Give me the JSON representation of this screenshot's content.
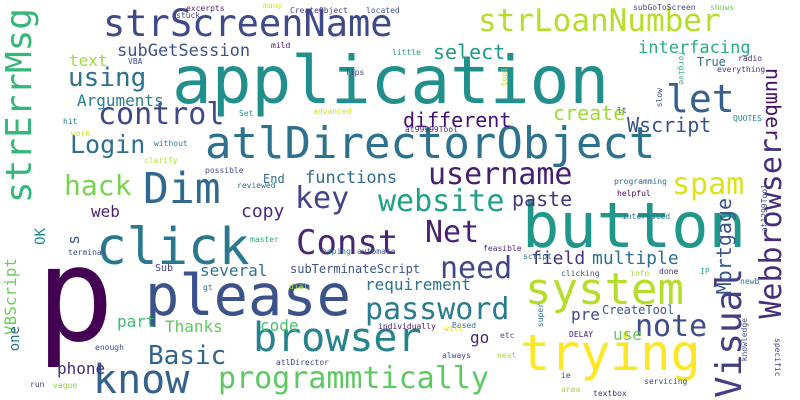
{
  "words": [
    {
      "text": "p",
      "color": "#440154"
    },
    {
      "text": "application",
      "color": "#21908c"
    },
    {
      "text": "button",
      "color": "#1f988b"
    },
    {
      "text": "please",
      "color": "#3b528b"
    },
    {
      "text": "atlDirectorObject",
      "color": "#2c728e"
    },
    {
      "text": "trying",
      "color": "#fde725"
    },
    {
      "text": "click",
      "color": "#2a788e"
    },
    {
      "text": "strScreenName",
      "color": "#3e4a89"
    },
    {
      "text": "strErrMsg",
      "color": "#35b779"
    },
    {
      "text": "system",
      "color": "#b5de2b"
    },
    {
      "text": "know",
      "color": "#33638d"
    },
    {
      "text": "browser",
      "color": "#26828e"
    },
    {
      "text": "Dim",
      "color": "#31688e"
    },
    {
      "text": "strLoanNumber",
      "color": "#b5de2b"
    },
    {
      "text": "let",
      "color": "#35608d"
    },
    {
      "text": "Visual",
      "color": "#433e85"
    },
    {
      "text": "Webbrowser",
      "color": "#472d7b"
    },
    {
      "text": "programmtically",
      "color": "#5ec962"
    },
    {
      "text": "control",
      "color": "#3e4989"
    },
    {
      "text": "Const",
      "color": "#482576"
    },
    {
      "text": "username",
      "color": "#481f70"
    },
    {
      "text": "password",
      "color": "#287c8e"
    },
    {
      "text": "website",
      "color": "#1fa088"
    },
    {
      "text": "spam",
      "color": "#dde318"
    },
    {
      "text": "note",
      "color": "#3d4e8a"
    },
    {
      "text": "Login",
      "color": "#2d708e"
    },
    {
      "text": "need",
      "color": "#3f4788"
    },
    {
      "text": "key",
      "color": "#404387"
    },
    {
      "text": "Net",
      "color": "#482173"
    },
    {
      "text": "hack",
      "color": "#7ad151"
    },
    {
      "text": "using",
      "color": "#2c728e"
    },
    {
      "text": "Basic",
      "color": "#33638d"
    },
    {
      "text": "create",
      "color": "#9fda3a"
    },
    {
      "text": "different",
      "color": "#440f76"
    },
    {
      "text": "Wscript",
      "color": "#3b528b"
    },
    {
      "text": "Mortgage",
      "color": "#3a548c"
    },
    {
      "text": "number",
      "color": "#471164"
    },
    {
      "text": "functions",
      "color": "#306a8e"
    },
    {
      "text": "paste",
      "color": "#453781"
    },
    {
      "text": "copy",
      "color": "#482979"
    },
    {
      "text": "field",
      "color": "#46327e"
    },
    {
      "text": "multiple",
      "color": "#2e6e8e"
    },
    {
      "text": "subGetSession",
      "color": "#3b528b"
    },
    {
      "text": "select",
      "color": "#1e9c89"
    },
    {
      "text": "interfacing",
      "color": "#28ae80"
    },
    {
      "text": "text",
      "color": "#a0da39"
    },
    {
      "text": "Arguments",
      "color": "#297b8e"
    },
    {
      "text": "web",
      "color": "#481f70"
    },
    {
      "text": "requirement",
      "color": "#2c728e"
    },
    {
      "text": "several",
      "color": "#2c738e"
    },
    {
      "text": "Thanks",
      "color": "#5ec962"
    },
    {
      "text": "code",
      "color": "#4ac16d"
    },
    {
      "text": "part",
      "color": "#3dbc74"
    },
    {
      "text": "pre",
      "color": "#3f4889"
    },
    {
      "text": "go",
      "color": "#482677"
    },
    {
      "text": "use",
      "color": "#65cb5e"
    },
    {
      "text": "phone",
      "color": "#482878"
    },
    {
      "text": "VBScript",
      "color": "#6ccd5a"
    },
    {
      "text": "one",
      "color": "#2e6f8e"
    },
    {
      "text": "s",
      "color": "#3a548c"
    },
    {
      "text": "OK",
      "color": "#228c8d"
    },
    {
      "text": "True",
      "color": "#31688e"
    },
    {
      "text": "CreateTool",
      "color": "#39568c"
    },
    {
      "text": "subTerminateScript",
      "color": "#3b528b"
    },
    {
      "text": "Sub",
      "color": "#453882"
    },
    {
      "text": "End",
      "color": "#2f6c8e"
    },
    {
      "text": "excerpts",
      "color": "#482878"
    },
    {
      "text": "many",
      "color": "#dde318"
    },
    {
      "text": "CreateObject",
      "color": "#433e85"
    },
    {
      "text": "located",
      "color": "#3b528b"
    },
    {
      "text": "subGoToScreen",
      "color": "#3e4a89"
    },
    {
      "text": "shows",
      "color": "#6ece58"
    },
    {
      "text": "stuck",
      "color": "#3f4788"
    },
    {
      "text": "mild",
      "color": "#481467"
    },
    {
      "text": "little",
      "color": "#1f9f88"
    },
    {
      "text": "forgive",
      "color": "#25ab82"
    },
    {
      "text": "radio",
      "color": "#482576"
    },
    {
      "text": "everything",
      "color": "#46337f"
    },
    {
      "text": "Tips",
      "color": "#414487"
    },
    {
      "text": "tool",
      "color": "#b8de29"
    },
    {
      "text": "slow",
      "color": "#3b528b"
    },
    {
      "text": "lt",
      "color": "#3f4788"
    },
    {
      "text": "QUOTES",
      "color": "#23898e"
    },
    {
      "text": "VBA",
      "color": "#3c4f8a"
    },
    {
      "text": "advanced",
      "color": "#d8e219"
    },
    {
      "text": "at99999Tool",
      "color": "#482979"
    },
    {
      "text": "work",
      "color": "#d0e11c"
    },
    {
      "text": "hit",
      "color": "#2b748e"
    },
    {
      "text": "Set",
      "color": "#20938c"
    },
    {
      "text": "without",
      "color": "#287d8e"
    },
    {
      "text": "clarify",
      "color": "#b5de2b"
    },
    {
      "text": "possible",
      "color": "#3e4c8a"
    },
    {
      "text": "reviewed",
      "color": "#2d718e"
    },
    {
      "text": "programming",
      "color": "#2e6d8e"
    },
    {
      "text": "helpful",
      "color": "#46085c"
    },
    {
      "text": "interested",
      "color": "#2c728e"
    },
    {
      "text": "at1299Tool",
      "color": "#3e4a89"
    },
    {
      "text": "newb",
      "color": "#2c728e"
    },
    {
      "text": "knowledge",
      "color": "#3b528b"
    },
    {
      "text": "specific",
      "color": "#433d84"
    },
    {
      "text": "terminal",
      "color": "#3d4e8a"
    },
    {
      "text": "master",
      "color": "#26ad81"
    },
    {
      "text": "hoping",
      "color": "#2a788e"
    },
    {
      "text": "automate",
      "color": "#38598c"
    },
    {
      "text": "dial",
      "color": "#a2da37"
    },
    {
      "text": "feasible",
      "color": "#472a7a"
    },
    {
      "text": "script",
      "color": "#297a8e"
    },
    {
      "text": "gt",
      "color": "#31688e"
    },
    {
      "text": "individually",
      "color": "#471365"
    },
    {
      "text": "Based",
      "color": "#2b758e"
    },
    {
      "text": "will",
      "color": "#d8e219"
    },
    {
      "text": "etc",
      "color": "#3b528b"
    },
    {
      "text": "super",
      "color": "#2d708e"
    },
    {
      "text": "clicking",
      "color": "#3a548c"
    },
    {
      "text": "info",
      "color": "#a5db36"
    },
    {
      "text": "done",
      "color": "#46307e"
    },
    {
      "text": "IP",
      "color": "#2ab07f"
    },
    {
      "text": "DELAY",
      "color": "#482071"
    },
    {
      "text": "enough",
      "color": "#3f4889"
    },
    {
      "text": "atlDirector",
      "color": "#3f4889"
    },
    {
      "text": "next",
      "color": "#a5db36"
    },
    {
      "text": "always",
      "color": "#3e4a89"
    },
    {
      "text": "ie",
      "color": "#3f4788"
    },
    {
      "text": "servicing",
      "color": "#3b528b"
    },
    {
      "text": "area",
      "color": "#a5db36"
    },
    {
      "text": "textbox",
      "color": "#46327e"
    },
    {
      "text": "run",
      "color": "#453882"
    },
    {
      "text": "vague",
      "color": "#90d743"
    }
  ]
}
